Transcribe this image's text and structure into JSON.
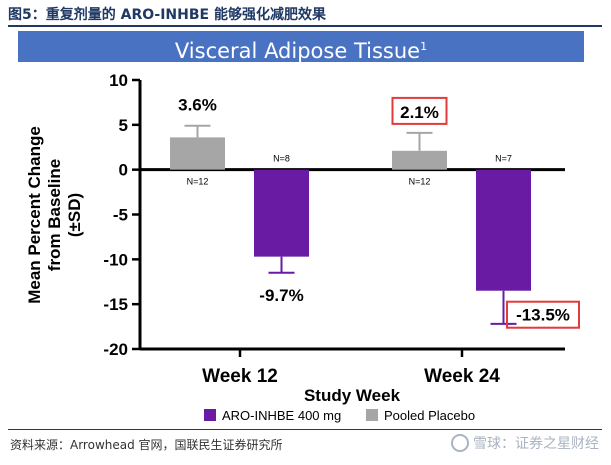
{
  "figure_title": "图5：重复剂量的 ARO-INHBE 能够强化减肥效果",
  "banner": {
    "title": "Visceral Adipose Tissue",
    "superscript": "1"
  },
  "source": "资料来源：Arrowhead 官网，国联民生证券研究所",
  "watermark": "雪球：证券之星财经",
  "colors": {
    "drug": "#6a1ba4",
    "placebo": "#a6a6a6",
    "highlight": "#e23b3b",
    "banner": "#4a72c2",
    "title": "#1f3864"
  },
  "chart_data": {
    "type": "bar",
    "title": "",
    "xlabel": "Study Week",
    "ylabel_line1": "Mean  Percent Change",
    "ylabel_line2": "from Baseline",
    "ylabel_line3": "(±SD)",
    "ylim": [
      -20,
      10
    ],
    "yticks": [
      10,
      5,
      0,
      -5,
      -10,
      -15,
      -20
    ],
    "grid": false,
    "legend_position": "bottom",
    "categories": [
      "Week 12",
      "Week 24"
    ],
    "series": [
      {
        "name": "ARO-INHBE 400 mg",
        "values": [
          -9.7,
          -13.5
        ],
        "errors": [
          1.8,
          3.7
        ],
        "labels": [
          "-9.7%",
          "-13.5%"
        ],
        "n_labels": [
          "N=8",
          "N=7"
        ],
        "boxed": [
          false,
          true
        ]
      },
      {
        "name": "Pooled Placebo",
        "values": [
          3.6,
          2.1
        ],
        "errors": [
          1.3,
          2.0
        ],
        "labels": [
          "3.6%",
          "2.1%"
        ],
        "n_labels": [
          "N=12",
          "N=12"
        ],
        "boxed": [
          false,
          true
        ]
      }
    ]
  }
}
